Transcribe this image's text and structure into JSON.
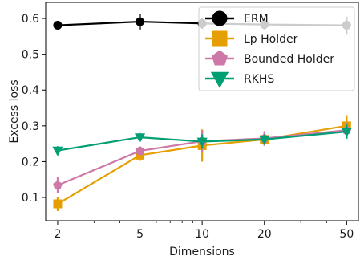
{
  "chart_data": {
    "type": "line",
    "xlabel": "Dimensions",
    "ylabel": "Excess loss",
    "x": [
      2,
      5,
      10,
      20,
      50
    ],
    "x_scale": "log",
    "x_ticks": [
      2,
      5,
      10,
      20,
      50
    ],
    "x_tick_labels": [
      "2",
      "5",
      "10",
      "20",
      "50"
    ],
    "y_ticks": [
      0.1,
      0.2,
      0.3,
      0.4,
      0.5,
      0.6
    ],
    "y_tick_labels": [
      "0.1",
      "0.2",
      "0.3",
      "0.4",
      "0.5",
      "0.6"
    ],
    "xlim": [
      1.75,
      57
    ],
    "ylim": [
      0.035,
      0.645
    ],
    "grid": false,
    "legend_position": "top-right",
    "series": [
      {
        "name": "ERM",
        "color": "#000000",
        "marker": "circle",
        "values": [
          0.581,
          0.591,
          0.586,
          0.583,
          0.581
        ],
        "errors": [
          0.01,
          0.022,
          0.015,
          0.014,
          0.024
        ]
      },
      {
        "name": "Lp Holder",
        "color": "#E69F00",
        "marker": "square",
        "values": [
          0.082,
          0.218,
          0.245,
          0.262,
          0.3
        ],
        "errors": [
          0.02,
          0.016,
          0.045,
          0.018,
          0.03
        ]
      },
      {
        "name": "Bounded Holder",
        "color": "#CC79A7",
        "marker": "pentagon",
        "values": [
          0.134,
          0.23,
          0.257,
          0.265,
          0.288
        ],
        "errors": [
          0.022,
          0.012,
          0.03,
          0.02,
          0.022
        ]
      },
      {
        "name": "RKHS",
        "color": "#009E73",
        "marker": "triangle-down",
        "values": [
          0.231,
          0.268,
          0.256,
          0.262,
          0.284
        ],
        "errors": [
          0.012,
          0.012,
          0.02,
          0.014,
          0.02
        ]
      }
    ]
  }
}
